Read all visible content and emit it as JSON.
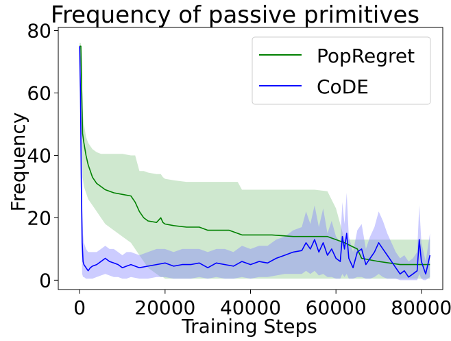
{
  "chart_data": {
    "type": "line",
    "title": "Frequency of passive primitives",
    "xlabel": "Training Steps",
    "ylabel": "Frequency",
    "xlim": [
      -5000,
      85000
    ],
    "ylim": [
      -3,
      81
    ],
    "xticks": [
      0,
      20000,
      40000,
      60000,
      80000
    ],
    "xtick_labels": [
      "0",
      "20000",
      "40000",
      "60000",
      "80000"
    ],
    "yticks": [
      0,
      20,
      40,
      60,
      80
    ],
    "ytick_labels": [
      "0",
      "20",
      "40",
      "60",
      "80"
    ],
    "grid": false,
    "legend_position": "top-right",
    "series": [
      {
        "name": "PopRegret",
        "color": "#008000",
        "band_color": "#9fd19f",
        "x": [
          0,
          300,
          500,
          700,
          1000,
          1500,
          2000,
          3000,
          4000,
          5000,
          6000,
          8000,
          10000,
          12000,
          13000,
          14000,
          15000,
          16000,
          18000,
          19000,
          19500,
          20000,
          22000,
          25000,
          28000,
          30000,
          33000,
          35000,
          37000,
          38000,
          45000,
          50000,
          55000,
          58000,
          60000,
          62000,
          65000,
          66000,
          70000,
          75000,
          78000,
          80000,
          82000
        ],
        "y": [
          75,
          75,
          60,
          47,
          44,
          40,
          37,
          33,
          31,
          30,
          29,
          28,
          27.5,
          27,
          25,
          22,
          20,
          19,
          18.5,
          20,
          18.5,
          18,
          17.5,
          17,
          17,
          16,
          16,
          16,
          15,
          14.5,
          14.5,
          14,
          14,
          14,
          13,
          12,
          10,
          7,
          6,
          5,
          5,
          5,
          5
        ],
        "upper": [
          76,
          76,
          70,
          55,
          50,
          46,
          44,
          42,
          41,
          40.5,
          40.5,
          40.5,
          40.5,
          40,
          40,
          35,
          35,
          34.5,
          34,
          34,
          33,
          32.5,
          32,
          31.5,
          31.5,
          31.5,
          31.5,
          31.5,
          31.5,
          29,
          29,
          29,
          29,
          28.5,
          23,
          13,
          13,
          13,
          13,
          13,
          13,
          13,
          13
        ],
        "lower": [
          74,
          74,
          50,
          33,
          30,
          28,
          26,
          24,
          22,
          20,
          18,
          16,
          14,
          12,
          10,
          8,
          6,
          4,
          2,
          1,
          1,
          0.5,
          0.5,
          0.5,
          0.5,
          0.5,
          0.5,
          0.5,
          0.5,
          0.5,
          0.5,
          0.5,
          0.5,
          0.5,
          0.5,
          0.5,
          0.5,
          0.5,
          0.5,
          0.5,
          0.5,
          0.5,
          0.5
        ]
      },
      {
        "name": "CoDE",
        "color": "#0000ff",
        "band_color": "#8080ff",
        "x": [
          0,
          200,
          400,
          600,
          800,
          1000,
          1500,
          2000,
          2500,
          3000,
          4000,
          5000,
          6000,
          7000,
          8000,
          9000,
          10000,
          11000,
          12000,
          14000,
          16000,
          18000,
          20000,
          22000,
          24000,
          26000,
          28000,
          30000,
          32000,
          34000,
          36000,
          38000,
          40000,
          42000,
          44000,
          46000,
          48000,
          50000,
          52000,
          53000,
          54000,
          55000,
          56000,
          57000,
          58000,
          59000,
          60000,
          61000,
          61500,
          62000,
          62500,
          63000,
          64000,
          65000,
          66000,
          67000,
          68000,
          69000,
          70000,
          71000,
          72000,
          73000,
          74000,
          75000,
          76000,
          77000,
          78000,
          79000,
          79500,
          80000,
          80500,
          81000,
          82000
        ],
        "y": [
          75,
          60,
          30,
          12,
          6,
          5,
          4,
          3,
          4,
          4.5,
          5,
          6,
          7,
          6,
          5.5,
          5,
          4,
          4.5,
          5,
          4,
          4.5,
          5,
          5.5,
          4.5,
          5,
          5,
          5.5,
          4,
          5.5,
          5,
          4.5,
          6,
          5,
          6,
          5.5,
          7,
          8,
          9,
          9.5,
          12,
          10,
          13,
          9,
          12,
          8,
          10,
          7,
          6,
          14,
          10,
          15,
          7,
          4,
          9,
          10,
          5,
          7,
          9,
          12,
          10,
          8,
          6,
          4,
          2,
          3,
          1,
          2,
          3,
          13,
          6,
          4,
          2,
          8
        ],
        "upper": [
          76,
          70,
          50,
          25,
          15,
          12,
          10,
          9,
          9,
          9,
          9,
          10,
          11,
          10,
          10,
          9,
          8,
          9,
          9,
          8,
          9,
          10,
          10,
          9,
          10,
          10,
          10,
          9,
          10,
          10,
          9,
          11,
          10,
          11,
          11,
          13,
          14,
          16,
          17,
          22,
          18,
          24,
          17,
          23,
          15,
          19,
          14,
          12,
          25,
          18,
          28,
          14,
          9,
          16,
          18,
          10,
          14,
          17,
          22,
          19,
          15,
          12,
          9,
          7,
          8,
          6,
          7,
          9,
          24,
          12,
          9,
          6,
          15
        ],
        "lower": [
          74,
          50,
          12,
          2,
          1,
          1,
          0.5,
          0.5,
          0.5,
          0.5,
          1,
          1.5,
          2,
          1.5,
          1,
          1,
          0.5,
          0.5,
          1,
          0.5,
          0.5,
          1,
          1,
          0.5,
          0.5,
          0.5,
          1,
          0.5,
          1,
          0.5,
          0.5,
          1,
          0.5,
          1,
          1,
          1.5,
          2,
          2,
          2,
          3,
          2,
          3,
          1.5,
          2,
          1,
          1,
          0.5,
          0.5,
          2,
          1,
          2,
          0.5,
          0.5,
          1,
          1,
          0.5,
          0.5,
          1,
          2,
          1,
          0.5,
          0.5,
          0.5,
          0,
          0,
          0,
          0,
          0,
          2,
          0.5,
          0,
          0,
          1
        ]
      }
    ]
  }
}
